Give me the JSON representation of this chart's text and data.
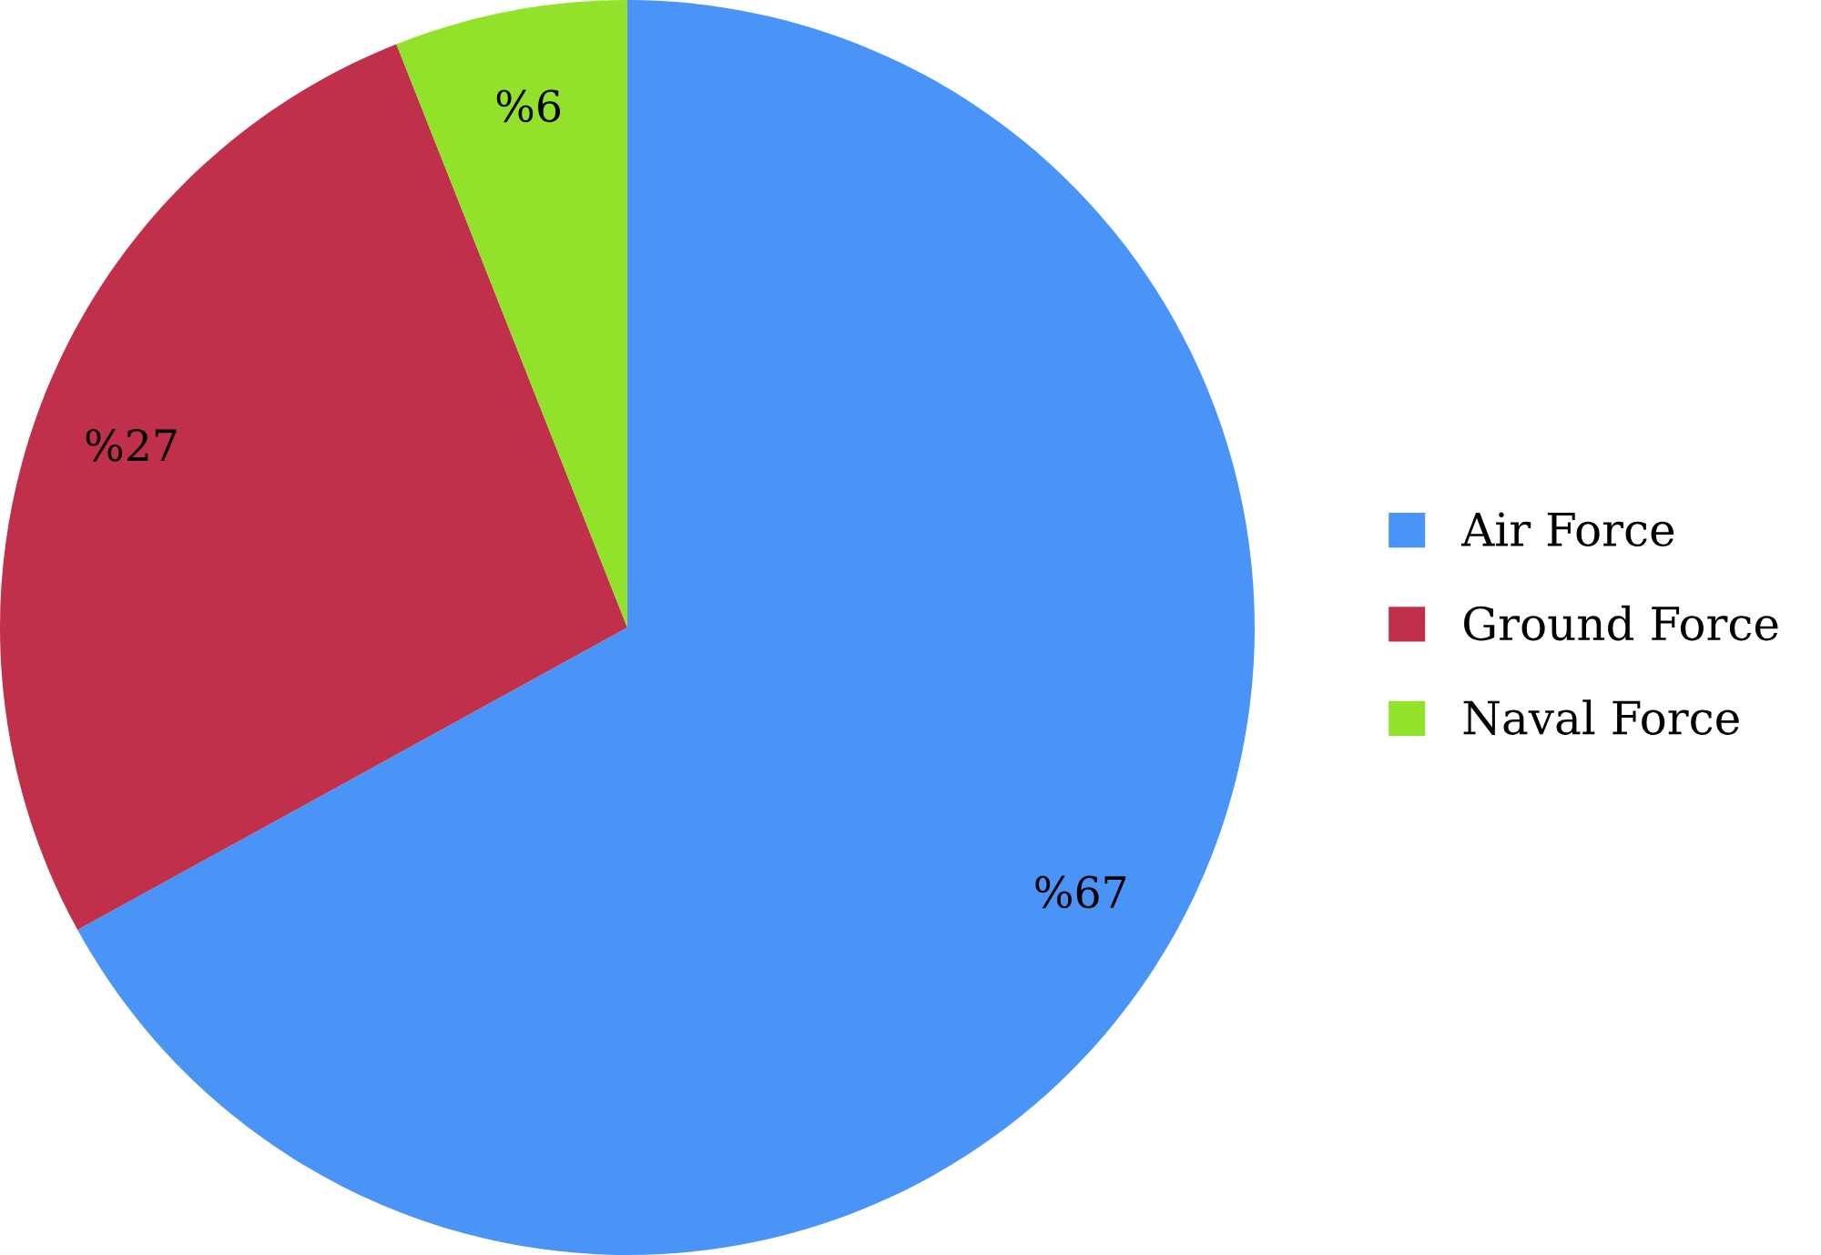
{
  "chart_data": {
    "type": "pie",
    "categories": [
      "Air Force",
      "Ground Force",
      "Naval Force"
    ],
    "values": [
      67,
      27,
      6
    ],
    "colors": [
      "#4a94f7",
      "#c0304a",
      "#92e22b"
    ],
    "value_labels": [
      "%67",
      "%27",
      "%6"
    ],
    "legend": "right"
  }
}
